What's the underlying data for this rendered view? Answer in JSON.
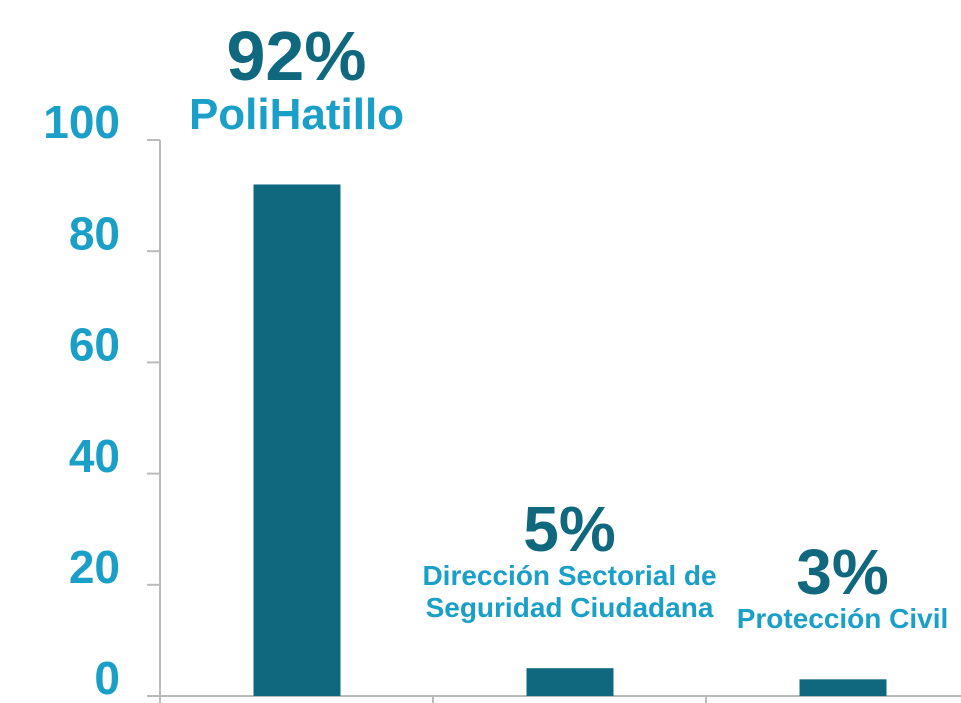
{
  "chart_data": {
    "type": "bar",
    "categories": [
      "PoliHatillo",
      "Dirección Sectorial de Seguridad Ciudadana",
      "Protección Civil"
    ],
    "values": [
      92,
      5,
      3
    ],
    "value_labels": [
      "92%",
      "5%",
      "3%"
    ],
    "color": "#10687f",
    "ylim": [
      0,
      100
    ],
    "yticks": [
      0,
      20,
      40,
      60,
      80,
      100
    ],
    "grid": false
  }
}
